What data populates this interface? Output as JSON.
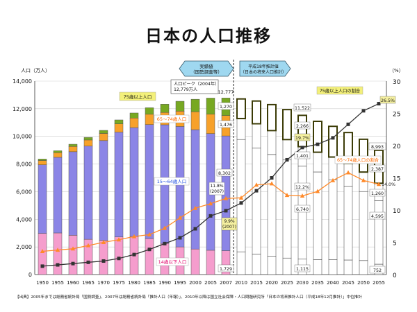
{
  "chart_data": {
    "type": "bar+line",
    "title": "日本の人口推移",
    "y_left_label": "人口（万人）",
    "y_right_label": "（%）",
    "y_left_range": [
      0,
      14000
    ],
    "y_left_ticks": [
      "0",
      "2,000",
      "4,000",
      "6,000",
      "8,000",
      "10,000",
      "12,000",
      "14,000"
    ],
    "y_right_range": [
      0,
      30
    ],
    "y_right_ticks": [
      "0",
      "5",
      "10",
      "15",
      "20",
      "25",
      "30"
    ],
    "categories": [
      "1950",
      "1955",
      "1960",
      "1965",
      "1970",
      "1975",
      "1980",
      "1985",
      "1990",
      "1995",
      "2000",
      "2005",
      "2007",
      "2010",
      "2015",
      "2020",
      "2025",
      "2030",
      "2035",
      "2040",
      "2045",
      "2050",
      "2055"
    ],
    "actual_count": 13,
    "stack_order": [
      "14歳以下人口",
      "15～64歳人口",
      "65～74歳人口",
      "75歳以上人口"
    ],
    "bar_series": [
      {
        "name": "14歳以下人口",
        "color": "#f59dcd",
        "values": [
          2979,
          3012,
          2843,
          2553,
          2482,
          2722,
          2751,
          2603,
          2249,
          2001,
          1847,
          1759,
          1729,
          1648,
          1484,
          1324,
          1195,
          1115,
          1084,
          1073,
          1054,
          1012,
          752
        ]
      },
      {
        "name": "15～64歳人口",
        "color": "#8b85e6",
        "values": [
          4966,
          5473,
          6047,
          6744,
          7212,
          7581,
          7883,
          8251,
          8590,
          8716,
          8638,
          8442,
          8302,
          8128,
          7681,
          7363,
          7096,
          6740,
          6343,
          5787,
          5353,
          5001,
          4595
        ]
      },
      {
        "name": "65～74歳人口",
        "color": "#f7a12a",
        "values": [
          309,
          338,
          379,
          442,
          518,
          604,
          693,
          748,
          892,
          1109,
          1301,
          1407,
          1476,
          1517,
          1749,
          1733,
          1479,
          1401,
          1427,
          1645,
          1635,
          1406,
          1260
        ]
      },
      {
        "name": "75歳以上人口",
        "color": "#77a822",
        "values": [
          106,
          138,
          163,
          189,
          224,
          284,
          366,
          471,
          597,
          717,
          901,
          1164,
          1270,
          1419,
          1646,
          1879,
          2167,
          2266,
          2236,
          2223,
          2237,
          2373,
          2387
        ]
      }
    ],
    "line_series": [
      {
        "name": "75歳以上人口の割合",
        "axis": "right",
        "color": "#333333",
        "values": [
          1.3,
          1.5,
          1.7,
          1.9,
          2.1,
          2.5,
          3.1,
          3.9,
          4.8,
          5.7,
          7.1,
          9.1,
          9.9,
          11.1,
          13.0,
          15.0,
          17.8,
          19.7,
          20.2,
          21.2,
          23.3,
          25.4,
          26.5
        ]
      },
      {
        "name": "65～74歳人口の割合",
        "axis": "right",
        "color": "#ff8a2a",
        "values": [
          3.6,
          3.8,
          4.0,
          4.5,
          5.0,
          5.4,
          5.9,
          6.2,
          7.2,
          8.8,
          10.3,
          11.0,
          11.8,
          11.9,
          13.9,
          14.1,
          12.3,
          12.2,
          12.9,
          14.6,
          15.8,
          14.6,
          14.0
        ]
      }
    ],
    "annotations": {
      "actual_box": "実績値\n（国勢調査等）",
      "projection_box": "平成18年推計値\n（日本の将来人口推計）",
      "peak_label": "人口ピーク（2004年）\n12,779万人",
      "total_2007": "12,777",
      "v2007_75": "1,270",
      "v2007_65": "1,476",
      "v2007_15": "8,302",
      "v2007_14": "1,729",
      "pct_2007_65": "11.8%\n(2007)",
      "pct_2007_75": "9.9%\n(2007)",
      "label_75": "75歳以上人口",
      "label_65": "65～74歳人口",
      "label_15": "15～64歳人口",
      "label_14": "14歳以下人口",
      "label_75_ratio": "75歳以上人口の割合",
      "label_65_ratio": "65～74歳人口の割合",
      "v2030_total": "11,522",
      "v2030_75": "2,266",
      "v2030_65": "1,401",
      "v2030_15": "6,740",
      "v2030_14": "1,115",
      "v2030_75pct": "19.7%",
      "v2030_65pct": "12.2%",
      "v2055_total": "8,993",
      "v2055_75": "2,387",
      "v2055_65": "1,260",
      "v2055_15": "4,595",
      "v2055_14": "752",
      "v2055_75pct": "26.5%",
      "v2055_65pct": "14.0%"
    },
    "source": "【出典】2005年までは総務省統計局「国勢調査」、2007年は総務省統計局「推計人口（年報）」、2010年以降は国立社会保障・人口問題研究所「日本の将来推計人口（平成18年12月推計）」中位推計"
  }
}
